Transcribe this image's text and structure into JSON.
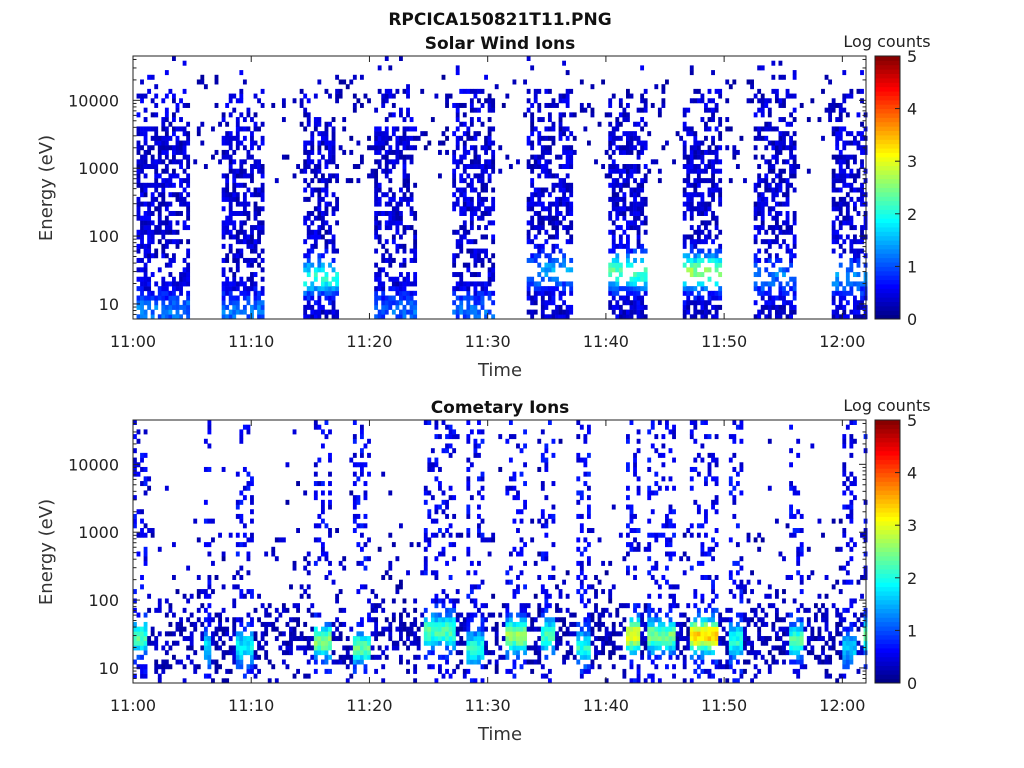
{
  "figure_title": "RPCICA150821T11.PNG",
  "chart_data": [
    {
      "type": "heatmap",
      "title": "Solar Wind Ions",
      "xlabel": "Time",
      "ylabel": "Energy (eV)",
      "x_ticks": [
        "11:00",
        "11:10",
        "11:20",
        "11:30",
        "11:40",
        "11:50",
        "12:00"
      ],
      "x_range": [
        "11:00",
        "12:02"
      ],
      "y_scale": "log",
      "y_ticks": [
        "10",
        "100",
        "1000",
        "10000"
      ],
      "y_range": [
        6,
        45000
      ],
      "colorbar": {
        "label": "Log counts",
        "range": [
          0,
          5
        ],
        "ticks": [
          "0",
          "1",
          "2",
          "3",
          "4",
          "5"
        ],
        "colormap": "jet"
      },
      "bursts": [
        {
          "start_min": 0.3,
          "end_min": 4.6,
          "peak_log_counts": 1.2,
          "peak_energy_ev": 8
        },
        {
          "start_min": 7.5,
          "end_min": 11.0,
          "peak_log_counts": 1.2,
          "peak_energy_ev": 8
        },
        {
          "start_min": 14.3,
          "end_min": 17.3,
          "peak_log_counts": 2.0,
          "peak_energy_ev": 25
        },
        {
          "start_min": 20.3,
          "end_min": 23.9,
          "peak_log_counts": 1.1,
          "peak_energy_ev": 8
        },
        {
          "start_min": 26.8,
          "end_min": 30.3,
          "peak_log_counts": 1.1,
          "peak_energy_ev": 8
        },
        {
          "start_min": 33.2,
          "end_min": 37.0,
          "peak_log_counts": 1.4,
          "peak_energy_ev": 30
        },
        {
          "start_min": 40.0,
          "end_min": 43.2,
          "peak_log_counts": 2.3,
          "peak_energy_ev": 30
        },
        {
          "start_min": 46.2,
          "end_min": 49.7,
          "peak_log_counts": 2.6,
          "peak_energy_ev": 30
        },
        {
          "start_min": 52.5,
          "end_min": 56.0,
          "peak_log_counts": 1.2,
          "peak_energy_ev": 25
        },
        {
          "start_min": 59.0,
          "end_min": 62.0,
          "peak_log_counts": 1.3,
          "peak_energy_ev": 25
        }
      ]
    },
    {
      "type": "heatmap",
      "title": "Cometary Ions",
      "xlabel": "Time",
      "ylabel": "Energy (eV)",
      "x_ticks": [
        "11:00",
        "11:10",
        "11:20",
        "11:30",
        "11:40",
        "11:50",
        "12:00"
      ],
      "x_range": [
        "11:00",
        "12:02"
      ],
      "y_scale": "log",
      "y_ticks": [
        "10",
        "100",
        "1000",
        "10000"
      ],
      "y_range": [
        6,
        45000
      ],
      "colorbar": {
        "label": "Log counts",
        "range": [
          0,
          5
        ],
        "ticks": [
          "0",
          "1",
          "2",
          "3",
          "4",
          "5"
        ],
        "colormap": "jet"
      },
      "bursts": [
        {
          "start_min": 0.0,
          "end_min": 1.0,
          "peak_log_counts": 2.2,
          "peak_energy_ev": 28
        },
        {
          "start_min": 5.8,
          "end_min": 6.4,
          "peak_log_counts": 1.6,
          "peak_energy_ev": 20
        },
        {
          "start_min": 8.5,
          "end_min": 10.0,
          "peak_log_counts": 1.8,
          "peak_energy_ev": 20
        },
        {
          "start_min": 15.2,
          "end_min": 16.6,
          "peak_log_counts": 2.5,
          "peak_energy_ev": 25
        },
        {
          "start_min": 18.5,
          "end_min": 19.8,
          "peak_log_counts": 2.3,
          "peak_energy_ev": 20
        },
        {
          "start_min": 24.5,
          "end_min": 27.0,
          "peak_log_counts": 2.2,
          "peak_energy_ev": 35
        },
        {
          "start_min": 28.0,
          "end_min": 29.5,
          "peak_log_counts": 2.0,
          "peak_energy_ev": 20
        },
        {
          "start_min": 31.5,
          "end_min": 33.0,
          "peak_log_counts": 2.6,
          "peak_energy_ev": 30
        },
        {
          "start_min": 34.2,
          "end_min": 35.5,
          "peak_log_counts": 2.1,
          "peak_energy_ev": 30
        },
        {
          "start_min": 37.5,
          "end_min": 38.5,
          "peak_log_counts": 2.0,
          "peak_energy_ev": 20
        },
        {
          "start_min": 41.5,
          "end_min": 42.8,
          "peak_log_counts": 3.0,
          "peak_energy_ev": 30
        },
        {
          "start_min": 43.5,
          "end_min": 45.8,
          "peak_log_counts": 2.4,
          "peak_energy_ev": 30
        },
        {
          "start_min": 47.0,
          "end_min": 49.2,
          "peak_log_counts": 3.3,
          "peak_energy_ev": 30
        },
        {
          "start_min": 50.3,
          "end_min": 51.5,
          "peak_log_counts": 2.0,
          "peak_energy_ev": 25
        },
        {
          "start_min": 55.2,
          "end_min": 56.5,
          "peak_log_counts": 2.2,
          "peak_energy_ev": 25
        },
        {
          "start_min": 60.0,
          "end_min": 61.0,
          "peak_log_counts": 1.5,
          "peak_energy_ev": 20
        },
        {
          "start_min": 61.6,
          "end_min": 62.0,
          "peak_log_counts": 2.2,
          "peak_energy_ev": 30
        }
      ]
    }
  ]
}
